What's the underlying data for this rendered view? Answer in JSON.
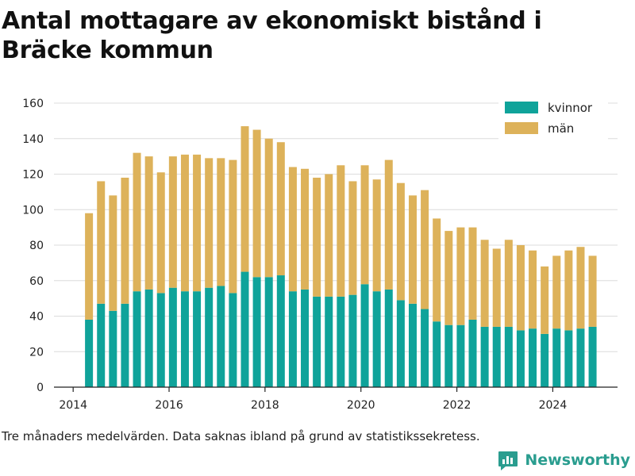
{
  "title": "Antal mottagare av ekonomiskt bistånd i Bräcke kommun",
  "footnote": "Tre månaders medelvärden. Data saknas ibland på grund av statistikssekretess.",
  "brand": {
    "name": "Newsworthy",
    "icon": "newsworthy-logo-icon",
    "color": "#2a9d8f"
  },
  "chart_data": {
    "type": "bar",
    "stacked": true,
    "title": "Antal mottagare av ekonomiskt bistånd i Bräcke kommun",
    "xlabel": "",
    "ylabel": "",
    "ylim": [
      0,
      160
    ],
    "yticks": [
      0,
      20,
      40,
      60,
      80,
      100,
      120,
      140,
      160
    ],
    "xlim": [
      2013.6,
      2025.35
    ],
    "xticks": [
      2014,
      2016,
      2018,
      2020,
      2022,
      2024
    ],
    "grid": true,
    "legend_position": "top-right",
    "x": [
      2014.33,
      2014.58,
      2014.83,
      2015.08,
      2015.33,
      2015.58,
      2015.83,
      2016.08,
      2016.33,
      2016.58,
      2016.83,
      2017.08,
      2017.33,
      2017.58,
      2017.83,
      2018.08,
      2018.33,
      2018.58,
      2018.83,
      2019.08,
      2019.33,
      2019.58,
      2019.83,
      2020.08,
      2020.33,
      2020.58,
      2020.83,
      2021.08,
      2021.33,
      2021.58,
      2021.83,
      2022.08,
      2022.33,
      2022.58,
      2022.83,
      2023.08,
      2023.33,
      2023.58,
      2023.83,
      2024.08,
      2024.33,
      2024.58,
      2024.83
    ],
    "series": [
      {
        "name": "kvinnor",
        "color": "#0fa39a",
        "values": [
          38,
          47,
          43,
          47,
          54,
          55,
          53,
          56,
          54,
          54,
          56,
          57,
          53,
          65,
          62,
          62,
          63,
          54,
          55,
          51,
          51,
          51,
          52,
          58,
          54,
          55,
          49,
          47,
          44,
          37,
          35,
          35,
          38,
          34,
          34,
          34,
          32,
          33,
          30,
          33,
          32,
          33,
          34
        ]
      },
      {
        "name": "män",
        "color": "#ddb25a",
        "values": [
          60,
          69,
          65,
          71,
          78,
          75,
          68,
          74,
          77,
          77,
          73,
          72,
          75,
          82,
          83,
          78,
          75,
          70,
          68,
          67,
          69,
          74,
          64,
          67,
          63,
          73,
          66,
          61,
          67,
          58,
          53,
          55,
          52,
          49,
          44,
          49,
          48,
          44,
          38,
          41,
          45,
          46,
          40
        ]
      }
    ]
  }
}
